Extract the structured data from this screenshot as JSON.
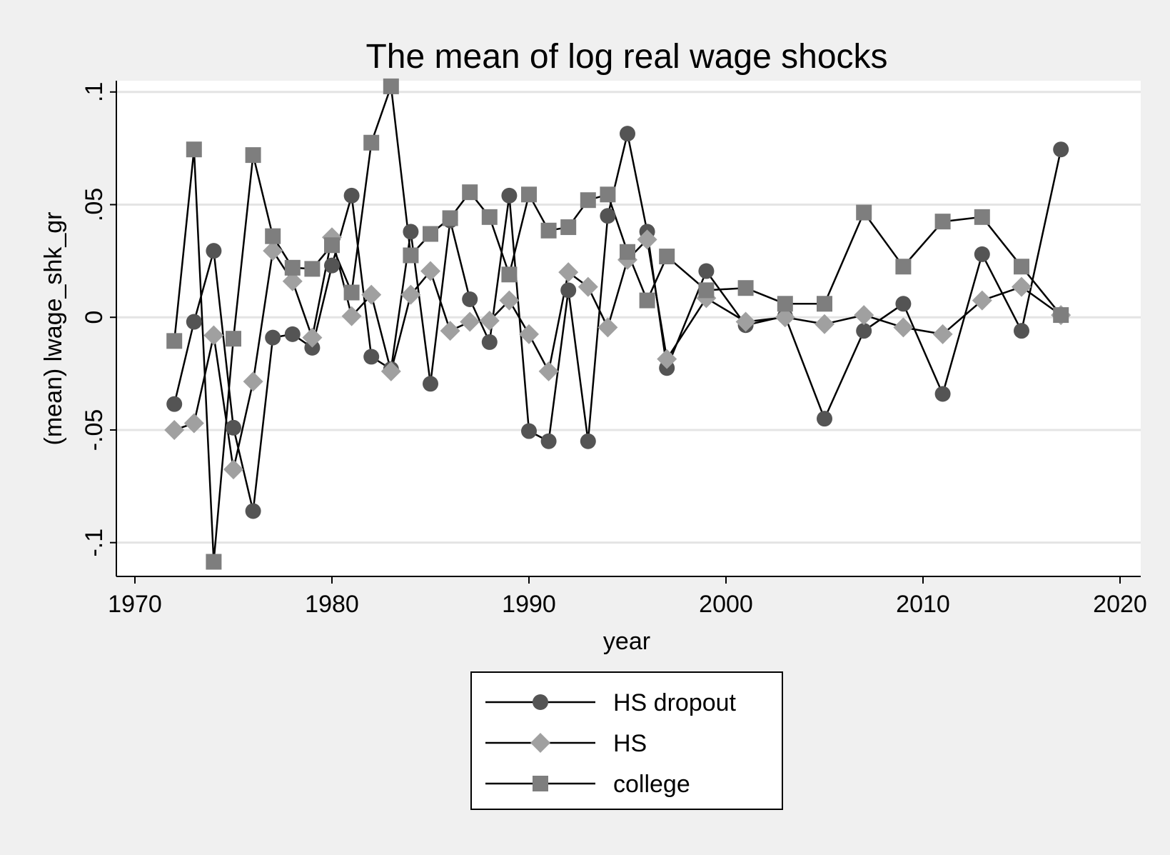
{
  "chart_data": {
    "type": "line",
    "title": "The mean of log real wage shocks",
    "xlabel": "year",
    "ylabel": "(mean) lwage_shk_gr",
    "xlim": [
      1970,
      2020
    ],
    "ylim": [
      -0.115,
      0.105
    ],
    "x_ticks": [
      1970,
      1980,
      1990,
      2000,
      2010,
      2020
    ],
    "x_tick_labels": [
      "1970",
      "1980",
      "1990",
      "2000",
      "2010",
      "2020"
    ],
    "y_ticks": [
      -0.1,
      -0.05,
      0,
      0.05,
      0.1
    ],
    "y_tick_labels": [
      "-.1",
      "-.05",
      "0",
      ".05",
      ".1"
    ],
    "grid": true,
    "legend_position": "bottom",
    "colors": {
      "page_background": "#f0f0f0",
      "plot_background": "#ffffff",
      "grid": "#e4e4e4",
      "line": "#000000",
      "hs_dropout": "#545454",
      "hs": "#a0a0a0",
      "college": "#7e7e7e"
    },
    "series": [
      {
        "name": "HS dropout",
        "marker": "circle",
        "x": [
          1972,
          1973,
          1974,
          1975,
          1976,
          1977,
          1978,
          1979,
          1980,
          1981,
          1982,
          1983,
          1984,
          1985,
          1986,
          1987,
          1988,
          1989,
          1990,
          1991,
          1992,
          1993,
          1994,
          1995,
          1996,
          1997,
          1999,
          2001,
          2003,
          2005,
          2007,
          2009,
          2011,
          2013,
          2015,
          2017
        ],
        "values": [
          -0.0385,
          -0.002,
          0.0295,
          -0.049,
          -0.086,
          -0.009,
          -0.0075,
          -0.0135,
          0.023,
          0.054,
          -0.0175,
          -0.023,
          0.038,
          -0.0295,
          0.043,
          0.008,
          -0.011,
          0.054,
          -0.0505,
          -0.055,
          0.012,
          -0.055,
          0.045,
          0.0815,
          0.038,
          -0.0225,
          0.0205,
          -0.0035,
          0.0005,
          -0.045,
          -0.006,
          0.006,
          -0.034,
          0.028,
          -0.006,
          0.0745
        ]
      },
      {
        "name": "HS",
        "marker": "diamond",
        "x": [
          1972,
          1973,
          1974,
          1975,
          1976,
          1977,
          1978,
          1979,
          1980,
          1981,
          1982,
          1983,
          1984,
          1985,
          1986,
          1987,
          1988,
          1989,
          1990,
          1991,
          1992,
          1993,
          1994,
          1995,
          1996,
          1997,
          1999,
          2001,
          2003,
          2005,
          2007,
          2009,
          2011,
          2013,
          2015,
          2017
        ],
        "values": [
          -0.05,
          -0.047,
          -0.008,
          -0.0675,
          -0.0285,
          0.0295,
          0.016,
          -0.009,
          0.0355,
          0.0005,
          0.01,
          -0.024,
          0.01,
          0.0205,
          -0.006,
          -0.002,
          -0.0015,
          0.0075,
          -0.0075,
          -0.024,
          0.02,
          0.0135,
          -0.0045,
          0.0255,
          0.0345,
          -0.0185,
          0.0085,
          -0.002,
          0.0,
          -0.003,
          0.001,
          -0.0045,
          -0.0075,
          0.0075,
          0.0135,
          0.001
        ]
      },
      {
        "name": "college",
        "marker": "square",
        "x": [
          1972,
          1973,
          1974,
          1975,
          1976,
          1977,
          1978,
          1979,
          1980,
          1981,
          1982,
          1983,
          1984,
          1985,
          1986,
          1987,
          1988,
          1989,
          1990,
          1991,
          1992,
          1993,
          1994,
          1995,
          1996,
          1997,
          1999,
          2001,
          2003,
          2005,
          2007,
          2009,
          2011,
          2013,
          2015,
          2017
        ],
        "values": [
          -0.0105,
          0.0745,
          -0.1085,
          -0.0095,
          0.072,
          0.036,
          0.022,
          0.0215,
          0.032,
          0.011,
          0.0775,
          0.1025,
          0.0275,
          0.037,
          0.044,
          0.0555,
          0.0445,
          0.019,
          0.0545,
          0.0385,
          0.04,
          0.052,
          0.0545,
          0.029,
          0.0075,
          0.027,
          0.012,
          0.013,
          0.006,
          0.006,
          0.0465,
          0.0225,
          0.0425,
          0.0445,
          0.0225,
          0.001
        ]
      }
    ]
  }
}
